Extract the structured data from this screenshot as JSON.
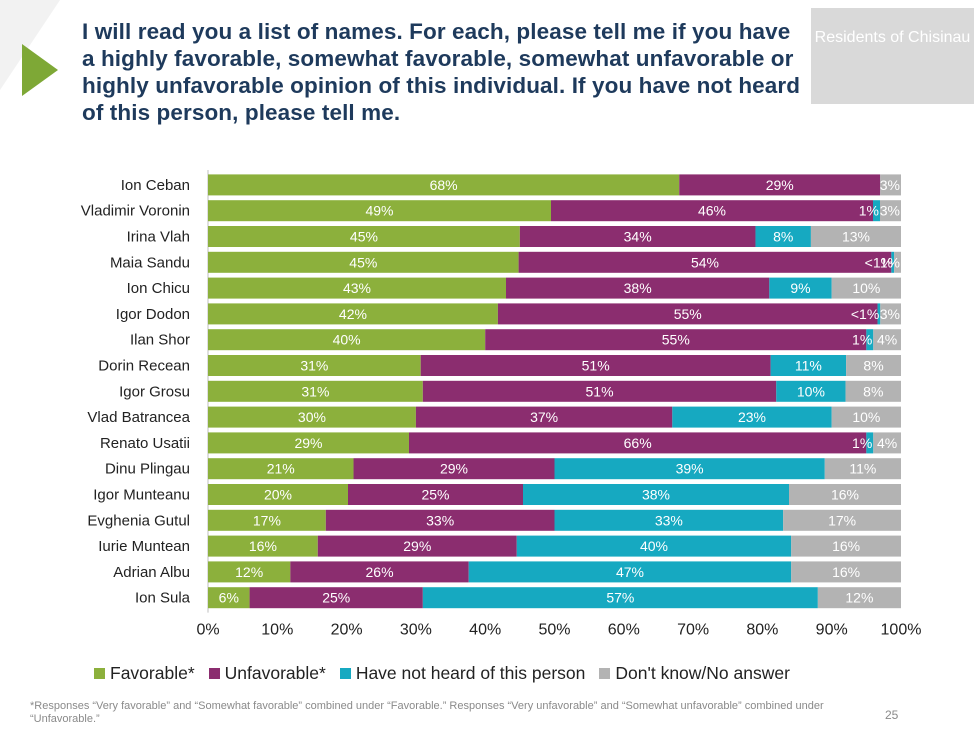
{
  "header": {
    "question": "I will read you a list of names. For each, please tell me if you have a highly favorable, somewhat favorable, somewhat unfavorable or highly unfavorable opinion of this individual. If you have not heard of this person, please tell me.",
    "tag": "Residents of Chisinau"
  },
  "legend": [
    {
      "label": "Favorable*",
      "color": "#8cb03c"
    },
    {
      "label": "Unfavorable*",
      "color": "#8b2d6f"
    },
    {
      "label": "Have not heard of this person",
      "color": "#16a9c1"
    },
    {
      "label": "Don't know/No answer",
      "color": "#b3b3b3"
    }
  ],
  "footnote": "*Responses “Very favorable” and “Somewhat favorable” combined under “Favorable.” Responses “Very unfavorable” and “Somewhat unfavorable” combined under “Unfavorable.”",
  "page_number": "25",
  "colors": {
    "title": "#1e3a5c",
    "accent": "#7ea836",
    "tag_bg": "#d9d9d9"
  },
  "chart_data": {
    "type": "bar",
    "orientation": "horizontal",
    "stacked": true,
    "categories": [
      "Ion Ceban",
      "Vladimir Voronin",
      "Irina Vlah",
      "Maia Sandu",
      "Ion Chicu",
      "Igor Dodon",
      "Ilan Shor",
      "Dorin Recean",
      "Igor Grosu",
      "Vlad Batrancea",
      "Renato Usatii",
      "Dinu Plingau",
      "Igor Munteanu",
      "Evghenia Gutul",
      "Iurie Muntean",
      "Adrian Albu",
      "Ion Sula"
    ],
    "series": [
      {
        "name": "Favorable*",
        "color": "#8cb03c",
        "values": [
          68,
          49,
          45,
          45,
          43,
          42,
          40,
          31,
          31,
          30,
          29,
          21,
          20,
          17,
          16,
          12,
          6
        ],
        "labels": [
          "68%",
          "49%",
          "45%",
          "45%",
          "43%",
          "42%",
          "40%",
          "31%",
          "31%",
          "30%",
          "29%",
          "21%",
          "20%",
          "17%",
          "16%",
          "12%",
          "6%"
        ]
      },
      {
        "name": "Unfavorable*",
        "color": "#8b2d6f",
        "values": [
          29,
          46,
          34,
          54,
          38,
          55,
          55,
          51,
          51,
          37,
          66,
          29,
          25,
          33,
          29,
          26,
          25
        ],
        "labels": [
          "29%",
          "46%",
          "34%",
          "54%",
          "38%",
          "55%",
          "55%",
          "51%",
          "51%",
          "37%",
          "66%",
          "29%",
          "25%",
          "33%",
          "29%",
          "26%",
          "25%"
        ]
      },
      {
        "name": "Have not heard of this person",
        "color": "#16a9c1",
        "values": [
          0,
          1,
          8,
          0.4,
          9,
          0.4,
          1,
          11,
          10,
          23,
          1,
          39,
          38,
          33,
          40,
          47,
          57
        ],
        "labels": [
          "",
          "1%",
          "8%",
          "<1%",
          "9%",
          "<1%",
          "1%",
          "11%",
          "10%",
          "23%",
          "1%",
          "39%",
          "38%",
          "33%",
          "40%",
          "47%",
          "57%"
        ]
      },
      {
        "name": "Don't know/No answer",
        "color": "#b3b3b3",
        "values": [
          3,
          3,
          13,
          1,
          10,
          3,
          4,
          8,
          8,
          10,
          4,
          11,
          16,
          17,
          16,
          16,
          12
        ],
        "labels": [
          "3%",
          "3%",
          "13%",
          "1%",
          "10%",
          "3%",
          "4%",
          "8%",
          "8%",
          "10%",
          "4%",
          "11%",
          "16%",
          "17%",
          "16%",
          "16%",
          "12%"
        ]
      }
    ],
    "xlim": [
      0,
      100
    ],
    "xticks": [
      "0%",
      "10%",
      "20%",
      "30%",
      "40%",
      "50%",
      "60%",
      "70%",
      "80%",
      "90%",
      "100%"
    ],
    "grid": false,
    "legend_position": "bottom"
  }
}
